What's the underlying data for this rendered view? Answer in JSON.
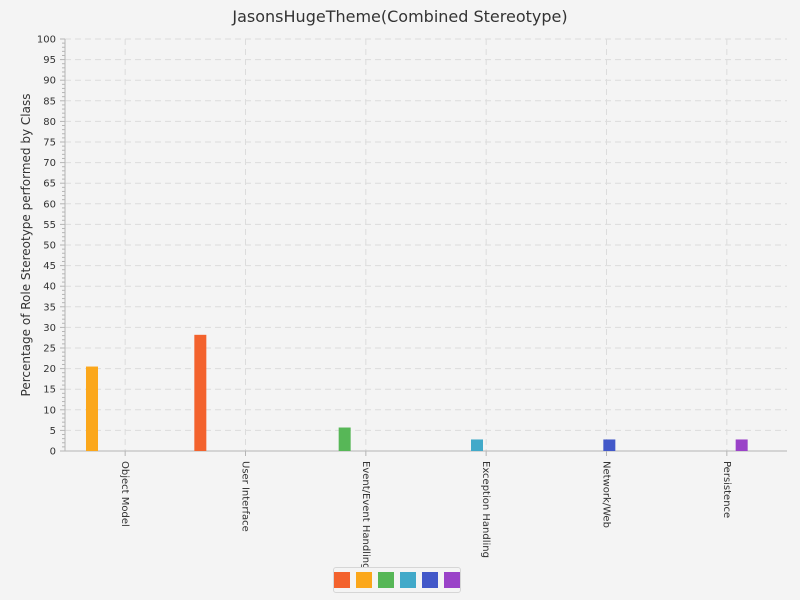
{
  "chart_data": {
    "type": "bar",
    "title": "JasonsHugeTheme(Combined Stereotype)",
    "xlabel": "",
    "ylabel": "Percentage of Role Stereotype performed by Class",
    "ylim": [
      0,
      100
    ],
    "y_major_ticks": [
      0,
      5,
      10,
      15,
      20,
      25,
      30,
      35,
      40,
      45,
      50,
      55,
      60,
      65,
      70,
      75,
      80,
      85,
      90,
      95,
      100
    ],
    "grid": true,
    "legend_placement": "bottom-center",
    "categories": [
      "Object Model",
      "User Interface",
      "Event/Event Handling",
      "Exception Handling",
      "Network/Web",
      "Persistence"
    ],
    "series": [
      {
        "color": "#f3622d",
        "values": [
          0,
          28.2,
          0,
          0,
          0,
          0
        ]
      },
      {
        "color": "#fba71b",
        "values": [
          20.5,
          0,
          0,
          0,
          0,
          0
        ]
      },
      {
        "color": "#57b757",
        "values": [
          0,
          0,
          5.7,
          0,
          0,
          0
        ]
      },
      {
        "color": "#41a9c9",
        "values": [
          0,
          0,
          0,
          2.8,
          0,
          0
        ]
      },
      {
        "color": "#4258c9",
        "values": [
          0,
          0,
          0,
          0,
          2.8,
          0
        ]
      },
      {
        "color": "#9a42c8",
        "values": [
          0,
          0,
          0,
          0,
          0,
          2.8
        ]
      }
    ]
  }
}
